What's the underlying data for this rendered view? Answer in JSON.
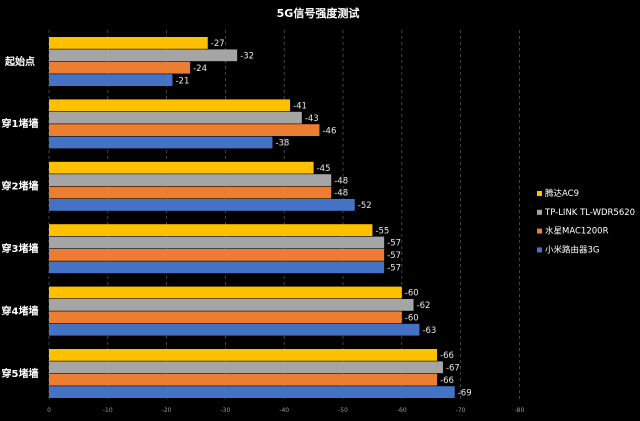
{
  "chart_data": {
    "type": "bar",
    "orientation": "horizontal",
    "title": "5G信号强度测试",
    "categories": [
      "起始点",
      "穿1堵墙",
      "穿2堵墙",
      "穿3堵墙",
      "穿4堵墙",
      "穿5堵墙"
    ],
    "series": [
      {
        "name": "腾达AC9",
        "color": "#FFC000",
        "values": [
          -27,
          -41,
          -45,
          -55,
          -60,
          -66
        ]
      },
      {
        "name": "TP-LINK TL-WDR5620",
        "color": "#A5A5A5",
        "values": [
          -32,
          -43,
          -48,
          -57,
          -62,
          -67
        ]
      },
      {
        "name": "水星MAC1200R",
        "color": "#ED7D31",
        "values": [
          -24,
          -46,
          -48,
          -57,
          -60,
          -66
        ]
      },
      {
        "name": "小米路由器3G",
        "color": "#4472C4",
        "values": [
          -21,
          -38,
          -52,
          -57,
          -63,
          -69
        ]
      }
    ],
    "xlim": [
      0,
      -80
    ],
    "xticks": [
      "0",
      "-10",
      "-20",
      "-30",
      "-40",
      "-50",
      "-60",
      "-70",
      "-80"
    ],
    "grid": true,
    "legend_position": "right"
  }
}
